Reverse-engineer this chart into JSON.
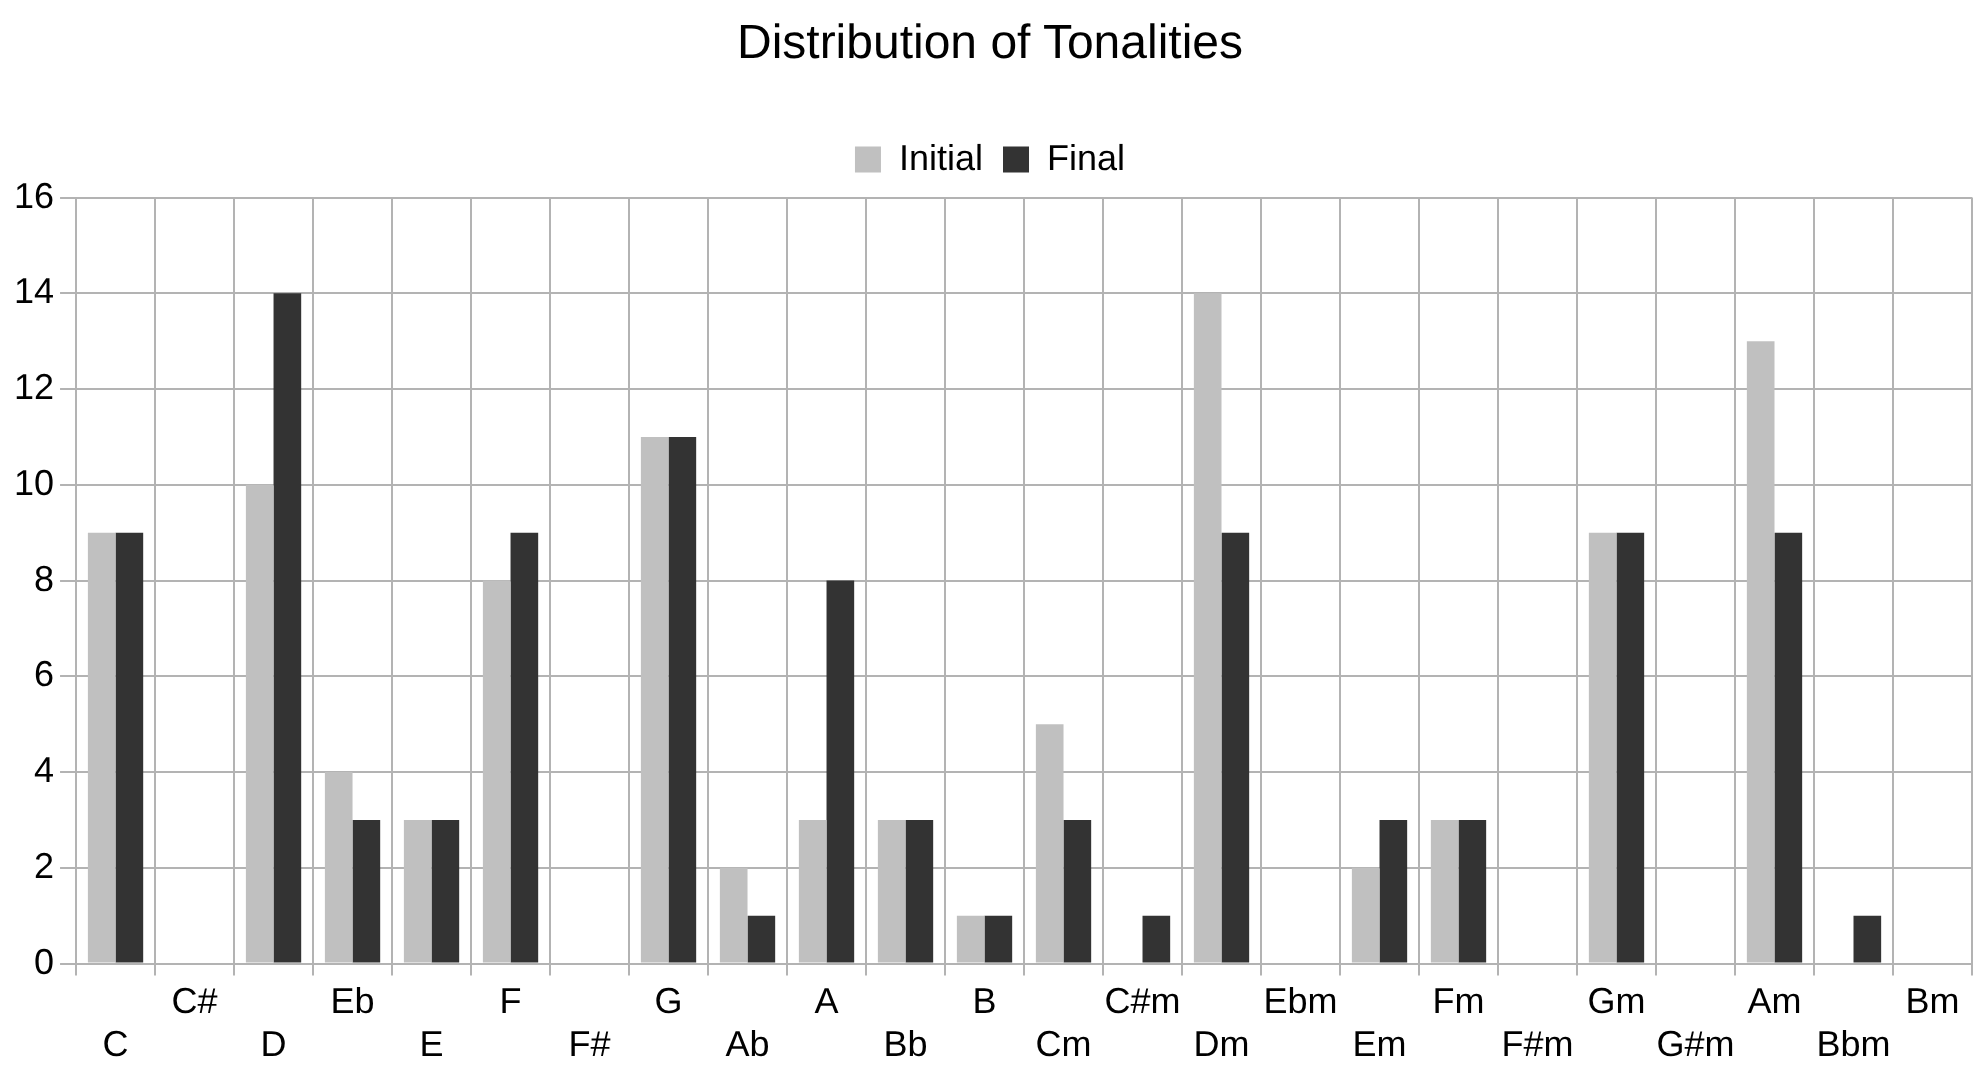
{
  "chart_data": {
    "type": "bar",
    "title": "Distribution of Tonalities",
    "categories": [
      "C",
      "C#",
      "D",
      "Eb",
      "E",
      "F",
      "F#",
      "G",
      "Ab",
      "A",
      "Bb",
      "B",
      "Cm",
      "C#m",
      "Dm",
      "Ebm",
      "Em",
      "Fm",
      "F#m",
      "Gm",
      "G#m",
      "Am",
      "Bbm",
      "Bm"
    ],
    "series": [
      {
        "name": "Initial",
        "color": "#c0c0c0",
        "values": [
          9,
          0,
          10,
          4,
          3,
          8,
          0,
          11,
          2,
          3,
          3,
          1,
          5,
          0,
          14,
          0,
          2,
          3,
          0,
          9,
          0,
          13,
          0,
          0
        ]
      },
      {
        "name": "Final",
        "color": "#333333",
        "values": [
          9,
          0,
          14,
          3,
          3,
          9,
          0,
          11,
          1,
          8,
          3,
          1,
          3,
          1,
          9,
          0,
          3,
          3,
          0,
          9,
          0,
          9,
          1,
          0
        ]
      }
    ],
    "ylim": [
      0,
      16
    ],
    "yticks": [
      0,
      2,
      4,
      6,
      8,
      10,
      12,
      14,
      16
    ],
    "grid": true,
    "legend": "top"
  }
}
